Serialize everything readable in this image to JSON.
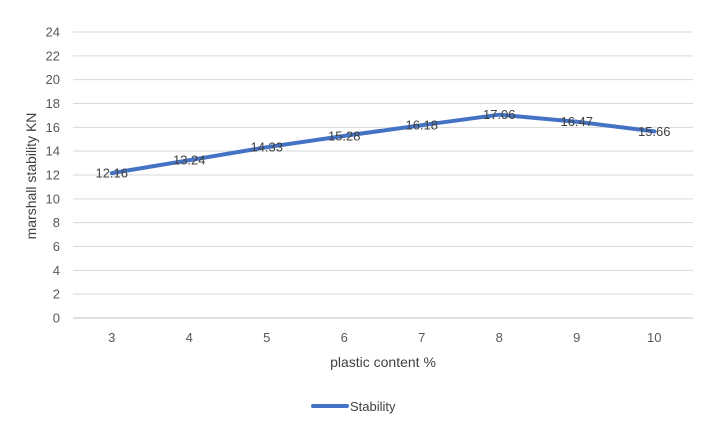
{
  "chart_data": {
    "type": "line",
    "title": "",
    "xlabel": "plastic content %",
    "ylabel": "marshall stability KN",
    "categories": [
      "3",
      "4",
      "5",
      "6",
      "7",
      "8",
      "9",
      "10"
    ],
    "series": [
      {
        "name": "Stability",
        "values": [
          12.16,
          13.24,
          14.33,
          15.28,
          16.18,
          17.06,
          16.47,
          15.66
        ],
        "labels": [
          "12.16",
          "13.24",
          "14.33",
          "15.28",
          "16.18",
          "17.06",
          "16.47",
          "15.66"
        ],
        "color": "#4472C4"
      }
    ],
    "ylim": [
      0,
      24
    ],
    "yticks": [
      "0",
      "2",
      "4",
      "6",
      "8",
      "10",
      "12",
      "14",
      "16",
      "18",
      "20",
      "22",
      "24"
    ],
    "grid": true,
    "legend_position": "bottom"
  },
  "colors": {
    "grid": "#D9D9D9",
    "axis": "#BFBFBF"
  }
}
